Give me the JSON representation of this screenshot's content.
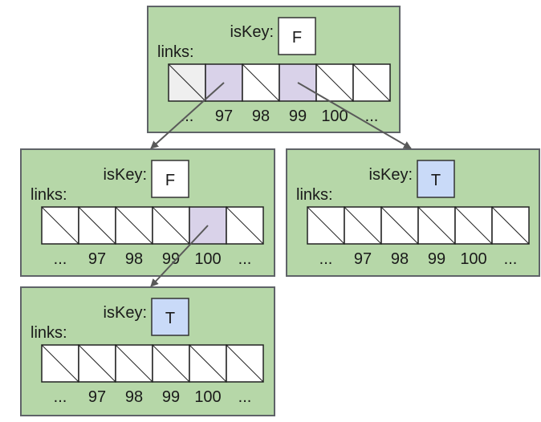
{
  "colors": {
    "node_fill": "#b6d7a8",
    "node_stroke": "#5f6368",
    "cell_empty": "#ffffff",
    "cell_linked": "#d9d2e9",
    "cell_gray": "#efefef",
    "flag_false": "#ffffff",
    "flag_true": "#c9daf8",
    "arrow": "#595959"
  },
  "labels": {
    "is_key": "isKey:",
    "links": "links:"
  },
  "nodes": [
    {
      "id": "root",
      "is_key": "F",
      "cells": [
        "gray",
        "linked",
        "empty",
        "linked",
        "empty",
        "empty"
      ],
      "indices": [
        "...",
        "97",
        "98",
        "99",
        "100",
        "..."
      ]
    },
    {
      "id": "child-a",
      "is_key": "F",
      "cells": [
        "empty",
        "empty",
        "empty",
        "empty",
        "linked",
        "empty"
      ],
      "indices": [
        "...",
        "97",
        "98",
        "99",
        "100",
        "..."
      ]
    },
    {
      "id": "child-c",
      "is_key": "T",
      "cells": [
        "empty",
        "empty",
        "empty",
        "empty",
        "empty",
        "empty"
      ],
      "indices": [
        "...",
        "97",
        "98",
        "99",
        "100",
        "..."
      ]
    },
    {
      "id": "grandchild-ad",
      "is_key": "T",
      "cells": [
        "empty",
        "empty",
        "empty",
        "empty",
        "empty",
        "empty"
      ],
      "indices": [
        "...",
        "97",
        "98",
        "99",
        "100",
        "..."
      ]
    }
  ],
  "edges": [
    {
      "from": "root",
      "cell": 1,
      "to": "child-a"
    },
    {
      "from": "root",
      "cell": 3,
      "to": "child-c"
    },
    {
      "from": "child-a",
      "cell": 4,
      "to": "grandchild-ad"
    }
  ]
}
